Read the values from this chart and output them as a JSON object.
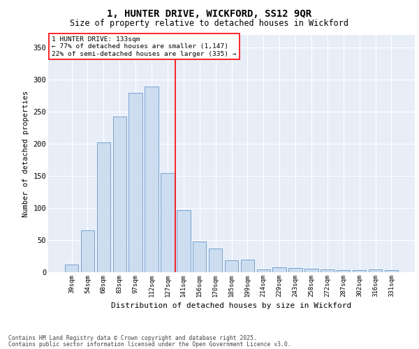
{
  "title_line1": "1, HUNTER DRIVE, WICKFORD, SS12 9QR",
  "title_line2": "Size of property relative to detached houses in Wickford",
  "xlabel": "Distribution of detached houses by size in Wickford",
  "ylabel": "Number of detached properties",
  "categories": [
    "39sqm",
    "54sqm",
    "68sqm",
    "83sqm",
    "97sqm",
    "112sqm",
    "127sqm",
    "141sqm",
    "156sqm",
    "170sqm",
    "185sqm",
    "199sqm",
    "214sqm",
    "229sqm",
    "243sqm",
    "258sqm",
    "272sqm",
    "287sqm",
    "302sqm",
    "316sqm",
    "331sqm"
  ],
  "bar_values": [
    12,
    65,
    202,
    243,
    280,
    290,
    155,
    97,
    48,
    37,
    18,
    20,
    4,
    8,
    6,
    5,
    4,
    3,
    3,
    4,
    3
  ],
  "bar_color": "#ccddf0",
  "bar_edge_color": "#6699cc",
  "vline_color": "red",
  "vline_pos": 6.5,
  "annotation_title": "1 HUNTER DRIVE: 133sqm",
  "annotation_line2": "← 77% of detached houses are smaller (1,147)",
  "annotation_line3": "22% of semi-detached houses are larger (335) →",
  "ylim": [
    0,
    370
  ],
  "yticks": [
    0,
    50,
    100,
    150,
    200,
    250,
    300,
    350
  ],
  "bg_color": "#e8eef8",
  "footer_line1": "Contains HM Land Registry data © Crown copyright and database right 2025.",
  "footer_line2": "Contains public sector information licensed under the Open Government Licence v3.0."
}
